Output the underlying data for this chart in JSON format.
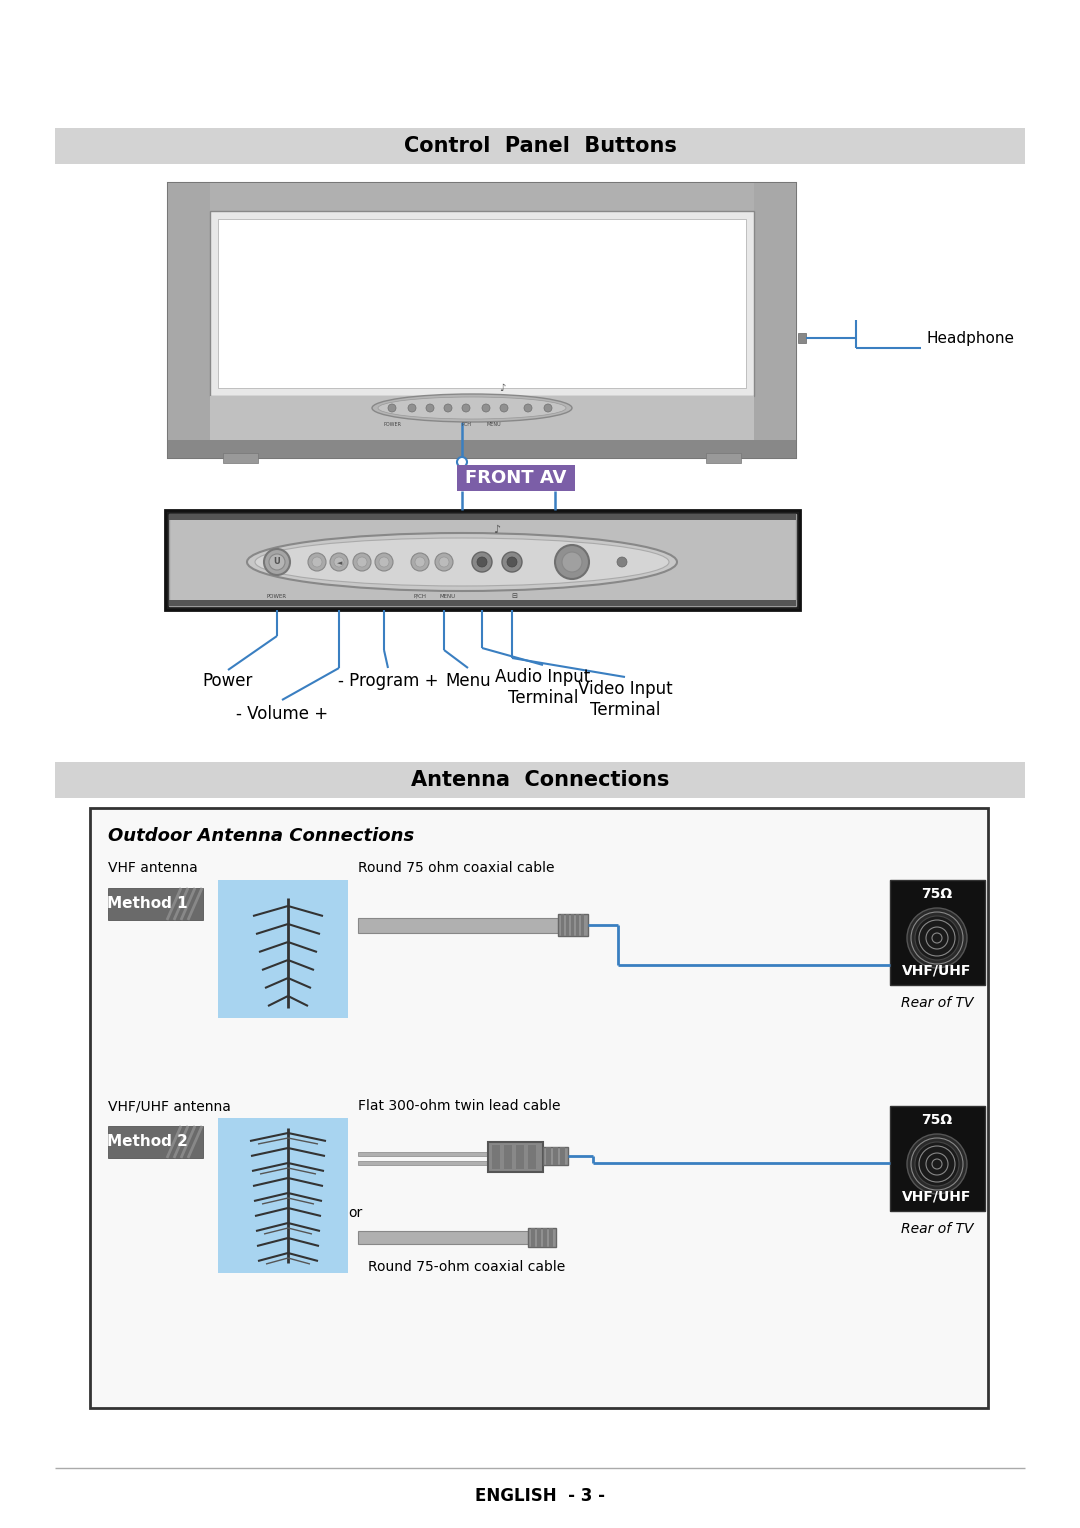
{
  "page_bg": "#ffffff",
  "section1_title": "Control  Panel  Buttons",
  "section1_bar_color": "#d3d3d3",
  "section2_title": "Antenna  Connections",
  "section2_bar_color": "#d3d3d3",
  "footer_text": "ENGLISH  - 3 -",
  "front_av_label": "FRONT AV",
  "front_av_bg": "#7b5ea7",
  "front_av_text_color": "#ffffff",
  "headphone_label": "Headphone",
  "label_power": "Power",
  "label_volume": "- Volume +",
  "label_program": "- Program +",
  "label_menu": "Menu",
  "label_audio": "Audio Input\nTerminal",
  "label_video": "Video Input\nTerminal",
  "antenna_box_label": "Outdoor Antenna Connections",
  "method1_label": "Method 1",
  "method2_label": "Method 2",
  "vhf_label": "VHF antenna",
  "vhf_uhf_label": "VHF/UHF antenna",
  "round_cable_label": "Round 75 ohm coaxial cable",
  "flat_cable_label": "Flat 300-ohm twin lead cable",
  "round_cable2_label": "Round 75-ohm coaxial cable",
  "or_label": "or",
  "rear_tv_label": "Rear of TV",
  "vhf_uhf_connector": "VHF/UHF",
  "ohm_label": "75Ω",
  "blue_color": "#3a7fc1",
  "method_bg": "#6a6a6a",
  "method_text": "#ffffff",
  "antenna_bg": "#a8d4f0",
  "connector_bg": "#111111",
  "connector_text": "#ffffff",
  "tv_body": "#b8b8b8",
  "tv_bezel": "#909090",
  "tv_screen": "#ffffff",
  "front_panel_dark": "#1a1a1a",
  "front_panel_body": "#c0c0c0"
}
